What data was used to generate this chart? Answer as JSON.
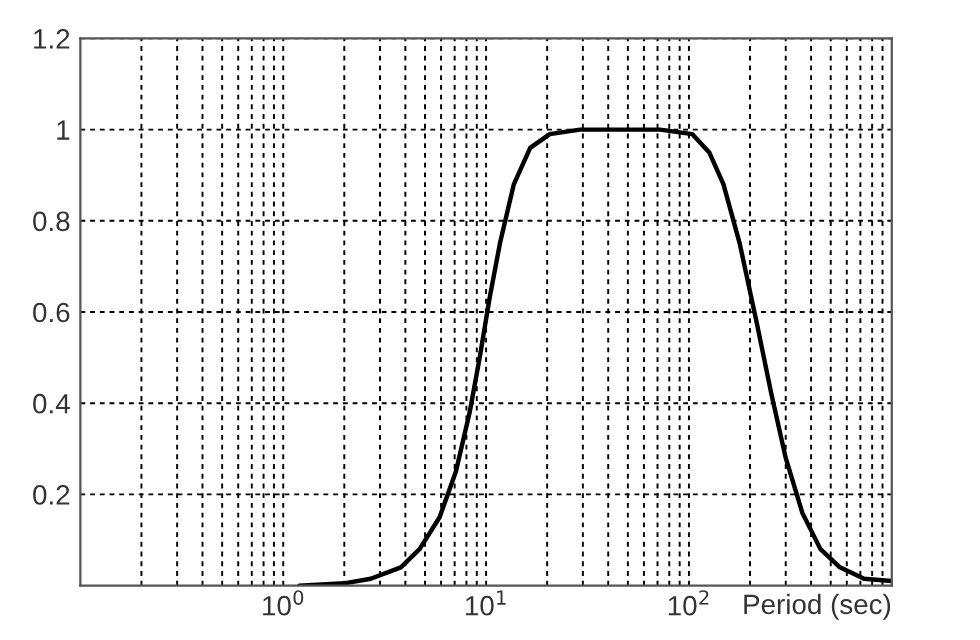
{
  "chart_data": {
    "type": "line",
    "xlabel": "Period (sec)",
    "x": [
      1.2,
      2,
      2.7,
      3.8,
      4.7,
      5.9,
      7.1,
      8.3,
      9.3,
      10.4,
      11.7,
      13.7,
      16.5,
      20.6,
      29,
      72,
      104,
      126,
      148,
      178,
      215,
      255,
      300,
      362,
      445,
      555,
      730,
      1000
    ],
    "series": [
      {
        "color": "#000000",
        "values": [
          0.0,
          0.005,
          0.015,
          0.04,
          0.08,
          0.15,
          0.25,
          0.38,
          0.5,
          0.63,
          0.75,
          0.88,
          0.96,
          0.99,
          1.0,
          1.0,
          0.99,
          0.95,
          0.88,
          0.75,
          0.58,
          0.42,
          0.28,
          0.16,
          0.08,
          0.04,
          0.015,
          0.01
        ]
      }
    ],
    "log": "x",
    "xlim": [
      0.1,
      1000
    ],
    "ylim": [
      0,
      1.2
    ],
    "xticks": [
      {
        "value": 1,
        "label": "10$^{0}$"
      },
      {
        "value": 10,
        "label": "10$^{1}$"
      },
      {
        "value": 100,
        "label": "10$^{2}$"
      }
    ],
    "yticks": [
      0.2,
      0.4,
      0.6,
      0.8,
      1,
      1.2
    ],
    "grid": true,
    "line_style": "solid",
    "marker": "none",
    "legend": false
  }
}
